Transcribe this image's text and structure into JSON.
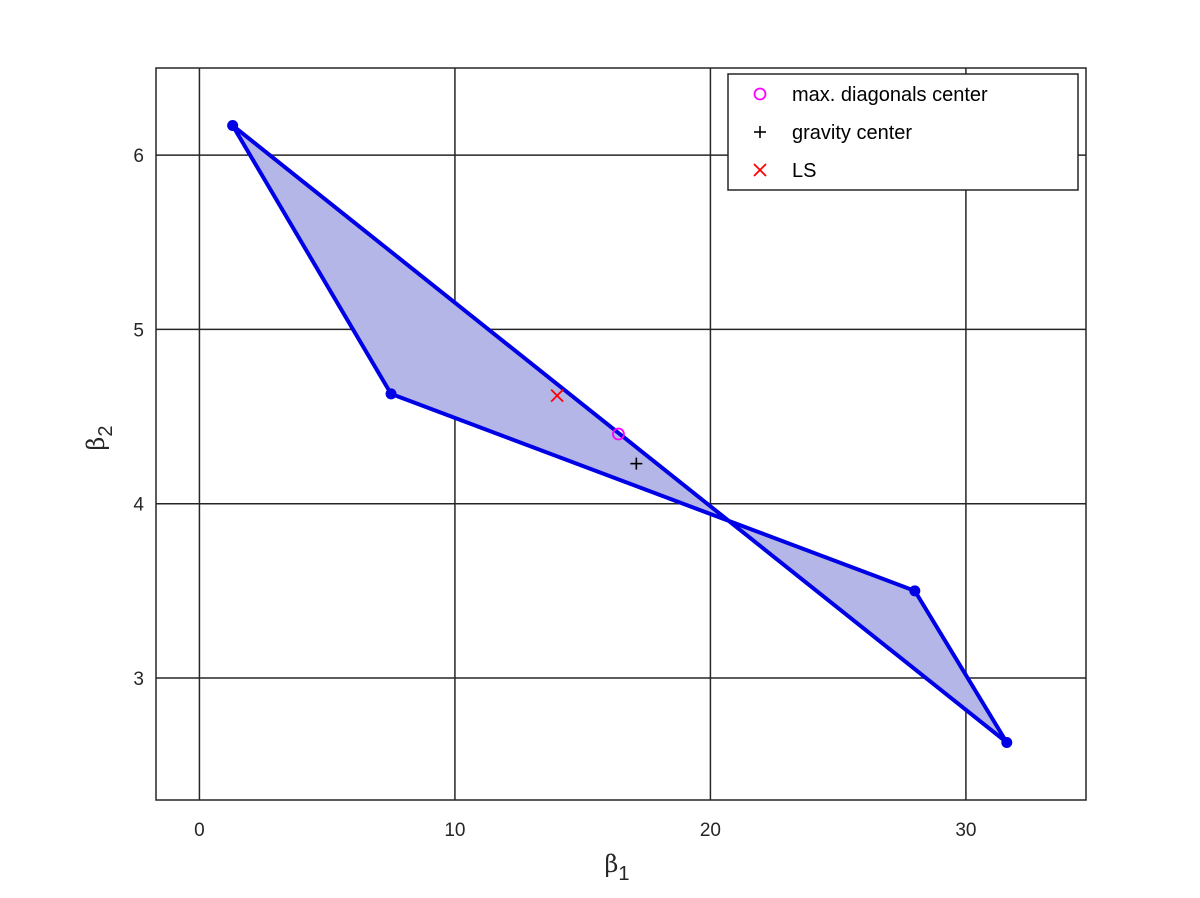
{
  "chart_data": {
    "type": "scatter",
    "title": "",
    "xlabel": "β",
    "xlabel_sub": "1",
    "ylabel": "β",
    "ylabel_sub": "2",
    "xlim": [
      -1.7,
      34.7
    ],
    "ylim": [
      2.3,
      6.5
    ],
    "xticks": [
      0,
      10,
      20,
      30
    ],
    "yticks": [
      3,
      4,
      5,
      6
    ],
    "grid": true,
    "legend_position": "top-right",
    "polygon": {
      "fill": "#b3b6e6",
      "stroke": "#0000e6",
      "vertices": [
        {
          "x": 1.3,
          "y": 6.17
        },
        {
          "x": 7.5,
          "y": 4.63
        },
        {
          "x": 28.0,
          "y": 3.5
        },
        {
          "x": 31.6,
          "y": 2.63
        },
        {
          "x": 1.3,
          "y": 6.17
        }
      ]
    },
    "series": [
      {
        "name": "max. diagonals center",
        "marker": "circle",
        "color": "#ff00ff",
        "x": [
          16.4
        ],
        "y": [
          4.4
        ]
      },
      {
        "name": "gravity center",
        "marker": "plus",
        "color": "#000000",
        "x": [
          17.1
        ],
        "y": [
          4.23
        ]
      },
      {
        "name": "LS",
        "marker": "x",
        "color": "#ff0000",
        "x": [
          14.0
        ],
        "y": [
          4.62
        ]
      }
    ]
  }
}
